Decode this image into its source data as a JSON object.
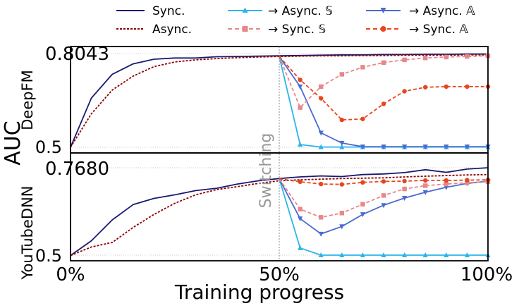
{
  "figure": {
    "ylabel": "AUC",
    "xlabel": "Training progress",
    "annotation": "Switching",
    "xticks": [
      "0%",
      "50%",
      "100%"
    ]
  },
  "legend": [
    {
      "label": "Sync.",
      "color": "#191970",
      "dash": "solid",
      "marker": "none"
    },
    {
      "label": "→ Async. 𝕊",
      "color": "#2bb5ea",
      "dash": "solid",
      "marker": "triangle-up"
    },
    {
      "label": "→ Async. 𝔸",
      "color": "#4a6bd1",
      "dash": "solid",
      "marker": "triangle-down"
    },
    {
      "label": "Async.",
      "color": "#8b0000",
      "dash": "dotted",
      "marker": "none"
    },
    {
      "label": "→  Sync. 𝕊",
      "color": "#e8878a",
      "dash": "dashed",
      "marker": "square"
    },
    {
      "label": "→ Sync. 𝔸",
      "color": "#e8451e",
      "dash": "dashed",
      "marker": "circle"
    }
  ],
  "chart_data": [
    {
      "type": "line",
      "panel_label": "DeepFM",
      "ytick_top": "0.8043",
      "ytick_bottom": "0.5",
      "ylim": [
        0.5,
        0.8043
      ],
      "xlim": [
        0,
        100
      ],
      "grid": true,
      "series": [
        {
          "name": "Sync.",
          "x": [
            0,
            5,
            10,
            15,
            20,
            25,
            30,
            35,
            40,
            45,
            50,
            55,
            60,
            65,
            70,
            75,
            80,
            85,
            90,
            95,
            100
          ],
          "y": [
            0.5,
            0.66,
            0.737,
            0.771,
            0.786,
            0.79,
            0.79,
            0.794,
            0.795,
            0.796,
            0.797,
            0.798,
            0.799,
            0.8,
            0.8,
            0.801,
            0.801,
            0.802,
            0.802,
            0.803,
            0.803
          ]
        },
        {
          "name": "Async.",
          "x": [
            0,
            5,
            10,
            15,
            20,
            25,
            30,
            35,
            40,
            45,
            50,
            55,
            60,
            65,
            70,
            75,
            80,
            85,
            90,
            95,
            100
          ],
          "y": [
            0.5,
            0.609,
            0.686,
            0.731,
            0.762,
            0.777,
            0.784,
            0.788,
            0.791,
            0.793,
            0.795,
            0.796,
            0.797,
            0.797,
            0.798,
            0.798,
            0.799,
            0.799,
            0.799,
            0.8,
            0.8
          ]
        },
        {
          "name": "→ Async. 𝕊",
          "x": [
            50,
            55,
            60,
            65,
            70,
            75,
            80,
            85,
            90,
            95,
            100
          ],
          "y": [
            0.795,
            0.509,
            0.501,
            0.501,
            0.501,
            0.501,
            0.501,
            0.501,
            0.501,
            0.501,
            0.501
          ]
        },
        {
          "name": "→ Async. 𝔸",
          "x": [
            50,
            55,
            60,
            65,
            70,
            75,
            80,
            85,
            90,
            95,
            100
          ],
          "y": [
            0.795,
            0.697,
            0.547,
            0.514,
            0.502,
            0.502,
            0.502,
            0.502,
            0.502,
            0.502,
            0.502
          ]
        },
        {
          "name": "→  Sync. 𝕊",
          "x": [
            50,
            55,
            60,
            65,
            70,
            75,
            80,
            85,
            90,
            95,
            100
          ],
          "y": [
            0.795,
            0.629,
            0.697,
            0.737,
            0.76,
            0.775,
            0.784,
            0.79,
            0.793,
            0.795,
            0.797
          ]
        },
        {
          "name": "→ Sync. 𝔸",
          "x": [
            50,
            55,
            60,
            65,
            70,
            75,
            80,
            85,
            90,
            95,
            100
          ],
          "y": [
            0.795,
            0.719,
            0.659,
            0.589,
            0.592,
            0.641,
            0.682,
            0.695,
            0.697,
            0.697,
            0.697
          ]
        }
      ]
    },
    {
      "type": "line",
      "panel_label": "YouTubeDNN",
      "ytick_top": "0.7680",
      "ytick_bottom": "0.5",
      "ylim": [
        0.5,
        0.768
      ],
      "xlim": [
        0,
        100
      ],
      "grid": true,
      "series": [
        {
          "name": "Sync.",
          "x": [
            0,
            5,
            10,
            15,
            20,
            25,
            30,
            35,
            40,
            45,
            50,
            55,
            60,
            65,
            70,
            75,
            80,
            85,
            90,
            95,
            100
          ],
          "y": [
            0.499,
            0.544,
            0.608,
            0.655,
            0.674,
            0.685,
            0.698,
            0.705,
            0.718,
            0.728,
            0.735,
            0.74,
            0.743,
            0.741,
            0.747,
            0.749,
            0.753,
            0.762,
            0.754,
            0.764,
            0.768
          ]
        },
        {
          "name": "Async.",
          "x": [
            0,
            5,
            10,
            15,
            20,
            25,
            30,
            35,
            40,
            45,
            50,
            55,
            60,
            65,
            70,
            75,
            80,
            85,
            90,
            95,
            100
          ],
          "y": [
            0.499,
            0.525,
            0.539,
            0.585,
            0.625,
            0.659,
            0.685,
            0.701,
            0.71,
            0.72,
            0.728,
            0.731,
            0.733,
            0.735,
            0.736,
            0.737,
            0.74,
            0.742,
            0.744,
            0.746,
            0.747
          ]
        },
        {
          "name": "→ Async. 𝕊",
          "x": [
            50,
            55,
            60,
            65,
            70,
            75,
            80,
            85,
            90,
            95,
            100
          ],
          "y": [
            0.734,
            0.522,
            0.5,
            0.5,
            0.5,
            0.5,
            0.5,
            0.5,
            0.5,
            0.5,
            0.5
          ]
        },
        {
          "name": "→ Async. 𝔸",
          "x": [
            50,
            55,
            60,
            65,
            70,
            75,
            80,
            85,
            90,
            95,
            100
          ],
          "y": [
            0.734,
            0.612,
            0.565,
            0.588,
            0.625,
            0.653,
            0.675,
            0.693,
            0.708,
            0.72,
            0.727
          ]
        },
        {
          "name": "→  Sync. 𝕊",
          "x": [
            50,
            55,
            60,
            65,
            70,
            75,
            80,
            85,
            90,
            95,
            100
          ],
          "y": [
            0.734,
            0.641,
            0.616,
            0.629,
            0.656,
            0.683,
            0.703,
            0.713,
            0.718,
            0.722,
            0.725
          ]
        },
        {
          "name": "→ Sync. 𝔸",
          "x": [
            50,
            55,
            60,
            65,
            70,
            75,
            80,
            85,
            90,
            95,
            100
          ],
          "y": [
            0.734,
            0.725,
            0.718,
            0.717,
            0.723,
            0.726,
            0.727,
            0.729,
            0.729,
            0.73,
            0.731
          ]
        }
      ]
    }
  ]
}
